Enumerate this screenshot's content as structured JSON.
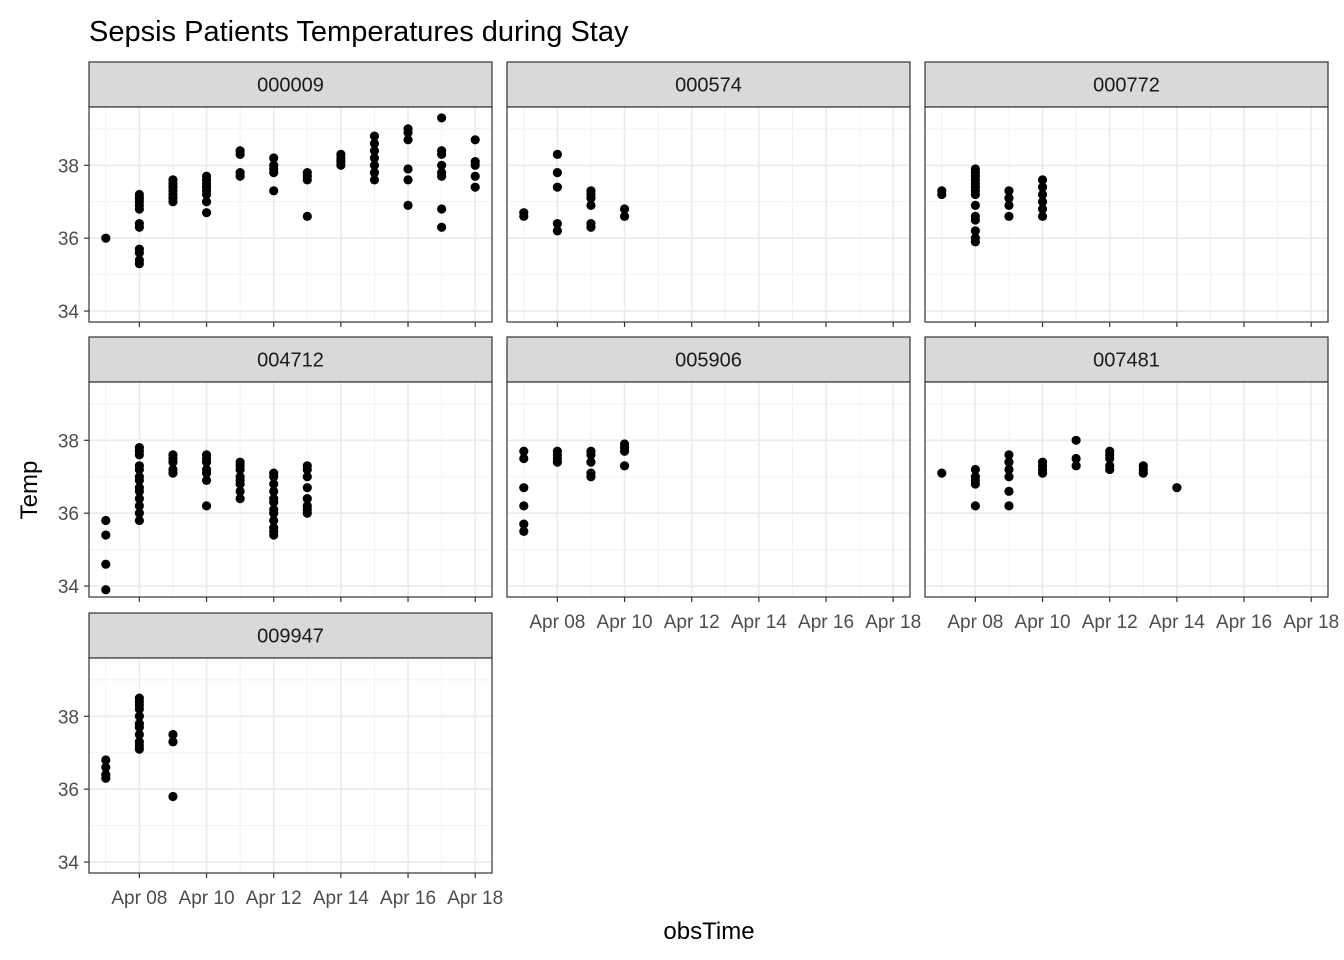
{
  "chart_data": {
    "type": "scatter",
    "title": "Sepsis Patients Temperatures during Stay",
    "xlabel": "obsTime",
    "ylabel": "Temp",
    "ylim": [
      33.7,
      39.6
    ],
    "xlim_day": [
      6.5,
      18.5
    ],
    "y_ticks": [
      34,
      36,
      38
    ],
    "x_ticks": [
      {
        "day": 8,
        "label": "Apr 08"
      },
      {
        "day": 10,
        "label": "Apr 10"
      },
      {
        "day": 12,
        "label": "Apr 12"
      },
      {
        "day": 14,
        "label": "Apr 14"
      },
      {
        "day": 16,
        "label": "Apr 16"
      },
      {
        "day": 18,
        "label": "Apr 18"
      }
    ],
    "grid": true,
    "point_color": "#000000",
    "strip_color": "#d9d9d9",
    "panels": [
      {
        "id": "000009",
        "points": [
          [
            7,
            36.0
          ],
          [
            8,
            35.3
          ],
          [
            8,
            35.4
          ],
          [
            8,
            35.6
          ],
          [
            8,
            35.7
          ],
          [
            8,
            36.3
          ],
          [
            8,
            36.4
          ],
          [
            8,
            36.8
          ],
          [
            8,
            36.9
          ],
          [
            8,
            37.0
          ],
          [
            8,
            37.1
          ],
          [
            8,
            37.2
          ],
          [
            9,
            37.0
          ],
          [
            9,
            37.1
          ],
          [
            9,
            37.2
          ],
          [
            9,
            37.3
          ],
          [
            9,
            37.4
          ],
          [
            9,
            37.5
          ],
          [
            9,
            37.6
          ],
          [
            10,
            36.7
          ],
          [
            10,
            37.0
          ],
          [
            10,
            37.2
          ],
          [
            10,
            37.3
          ],
          [
            10,
            37.4
          ],
          [
            10,
            37.5
          ],
          [
            10,
            37.6
          ],
          [
            10,
            37.7
          ],
          [
            11,
            37.7
          ],
          [
            11,
            37.8
          ],
          [
            11,
            38.3
          ],
          [
            11,
            38.4
          ],
          [
            12,
            37.3
          ],
          [
            12,
            37.8
          ],
          [
            12,
            37.9
          ],
          [
            12,
            38.0
          ],
          [
            12,
            38.2
          ],
          [
            13,
            36.6
          ],
          [
            13,
            37.6
          ],
          [
            13,
            37.7
          ],
          [
            13,
            37.8
          ],
          [
            14,
            38.0
          ],
          [
            14,
            38.1
          ],
          [
            14,
            38.2
          ],
          [
            14,
            38.3
          ],
          [
            15,
            37.6
          ],
          [
            15,
            37.8
          ],
          [
            15,
            38.0
          ],
          [
            15,
            38.2
          ],
          [
            15,
            38.4
          ],
          [
            15,
            38.6
          ],
          [
            15,
            38.8
          ],
          [
            16,
            36.9
          ],
          [
            16,
            37.6
          ],
          [
            16,
            37.9
          ],
          [
            16,
            38.7
          ],
          [
            16,
            38.9
          ],
          [
            16,
            39.0
          ],
          [
            17,
            36.3
          ],
          [
            17,
            36.8
          ],
          [
            17,
            37.7
          ],
          [
            17,
            37.8
          ],
          [
            17,
            38.0
          ],
          [
            17,
            38.3
          ],
          [
            17,
            38.4
          ],
          [
            17,
            39.3
          ],
          [
            18,
            37.4
          ],
          [
            18,
            37.7
          ],
          [
            18,
            38.0
          ],
          [
            18,
            38.1
          ],
          [
            18,
            38.7
          ]
        ]
      },
      {
        "id": "000574",
        "points": [
          [
            7,
            36.6
          ],
          [
            7,
            36.7
          ],
          [
            8,
            36.2
          ],
          [
            8,
            36.4
          ],
          [
            8,
            37.4
          ],
          [
            8,
            37.8
          ],
          [
            8,
            38.3
          ],
          [
            9,
            36.3
          ],
          [
            9,
            36.4
          ],
          [
            9,
            36.9
          ],
          [
            9,
            37.1
          ],
          [
            9,
            37.2
          ],
          [
            9,
            37.3
          ],
          [
            10,
            36.6
          ],
          [
            10,
            36.8
          ]
        ]
      },
      {
        "id": "000772",
        "points": [
          [
            7,
            37.2
          ],
          [
            7,
            37.3
          ],
          [
            8,
            35.9
          ],
          [
            8,
            36.0
          ],
          [
            8,
            36.2
          ],
          [
            8,
            36.5
          ],
          [
            8,
            36.6
          ],
          [
            8,
            36.9
          ],
          [
            8,
            37.2
          ],
          [
            8,
            37.3
          ],
          [
            8,
            37.4
          ],
          [
            8,
            37.5
          ],
          [
            8,
            37.6
          ],
          [
            8,
            37.7
          ],
          [
            8,
            37.8
          ],
          [
            8,
            37.9
          ],
          [
            9,
            36.6
          ],
          [
            9,
            36.9
          ],
          [
            9,
            37.1
          ],
          [
            9,
            37.3
          ],
          [
            10,
            36.6
          ],
          [
            10,
            36.8
          ],
          [
            10,
            37.0
          ],
          [
            10,
            37.2
          ],
          [
            10,
            37.4
          ],
          [
            10,
            37.6
          ]
        ]
      },
      {
        "id": "004712",
        "points": [
          [
            7,
            33.9
          ],
          [
            7,
            34.6
          ],
          [
            7,
            35.4
          ],
          [
            7,
            35.8
          ],
          [
            8,
            35.8
          ],
          [
            8,
            36.0
          ],
          [
            8,
            36.2
          ],
          [
            8,
            36.4
          ],
          [
            8,
            36.6
          ],
          [
            8,
            36.7
          ],
          [
            8,
            36.9
          ],
          [
            8,
            37.0
          ],
          [
            8,
            37.2
          ],
          [
            8,
            37.3
          ],
          [
            8,
            37.6
          ],
          [
            8,
            37.7
          ],
          [
            8,
            37.8
          ],
          [
            9,
            37.1
          ],
          [
            9,
            37.2
          ],
          [
            9,
            37.4
          ],
          [
            9,
            37.5
          ],
          [
            9,
            37.6
          ],
          [
            10,
            36.2
          ],
          [
            10,
            36.9
          ],
          [
            10,
            37.1
          ],
          [
            10,
            37.2
          ],
          [
            10,
            37.4
          ],
          [
            10,
            37.5
          ],
          [
            10,
            37.6
          ],
          [
            11,
            36.4
          ],
          [
            11,
            36.6
          ],
          [
            11,
            36.8
          ],
          [
            11,
            36.9
          ],
          [
            11,
            37.0
          ],
          [
            11,
            37.2
          ],
          [
            11,
            37.3
          ],
          [
            11,
            37.4
          ],
          [
            12,
            35.4
          ],
          [
            12,
            35.5
          ],
          [
            12,
            35.6
          ],
          [
            12,
            35.8
          ],
          [
            12,
            36.0
          ],
          [
            12,
            36.1
          ],
          [
            12,
            36.3
          ],
          [
            12,
            36.4
          ],
          [
            12,
            36.6
          ],
          [
            12,
            36.8
          ],
          [
            12,
            37.0
          ],
          [
            12,
            37.1
          ],
          [
            13,
            36.0
          ],
          [
            13,
            36.1
          ],
          [
            13,
            36.2
          ],
          [
            13,
            36.4
          ],
          [
            13,
            36.7
          ],
          [
            13,
            37.0
          ],
          [
            13,
            37.2
          ],
          [
            13,
            37.3
          ]
        ]
      },
      {
        "id": "005906",
        "points": [
          [
            7,
            35.5
          ],
          [
            7,
            35.7
          ],
          [
            7,
            36.2
          ],
          [
            7,
            36.7
          ],
          [
            7,
            37.5
          ],
          [
            7,
            37.7
          ],
          [
            8,
            37.4
          ],
          [
            8,
            37.5
          ],
          [
            8,
            37.6
          ],
          [
            8,
            37.7
          ],
          [
            9,
            37.0
          ],
          [
            9,
            37.1
          ],
          [
            9,
            37.4
          ],
          [
            9,
            37.6
          ],
          [
            9,
            37.7
          ],
          [
            10,
            37.3
          ],
          [
            10,
            37.7
          ],
          [
            10,
            37.8
          ],
          [
            10,
            37.9
          ]
        ]
      },
      {
        "id": "007481",
        "points": [
          [
            7,
            37.1
          ],
          [
            8,
            36.2
          ],
          [
            8,
            36.8
          ],
          [
            8,
            36.9
          ],
          [
            8,
            37.0
          ],
          [
            8,
            37.2
          ],
          [
            9,
            36.2
          ],
          [
            9,
            36.6
          ],
          [
            9,
            37.0
          ],
          [
            9,
            37.2
          ],
          [
            9,
            37.4
          ],
          [
            9,
            37.6
          ],
          [
            10,
            37.1
          ],
          [
            10,
            37.2
          ],
          [
            10,
            37.3
          ],
          [
            10,
            37.4
          ],
          [
            11,
            37.3
          ],
          [
            11,
            37.5
          ],
          [
            11,
            38.0
          ],
          [
            12,
            37.2
          ],
          [
            12,
            37.3
          ],
          [
            12,
            37.5
          ],
          [
            12,
            37.6
          ],
          [
            12,
            37.7
          ],
          [
            13,
            37.1
          ],
          [
            13,
            37.2
          ],
          [
            13,
            37.3
          ],
          [
            14,
            36.7
          ]
        ]
      },
      {
        "id": "009947",
        "points": [
          [
            7,
            36.3
          ],
          [
            7,
            36.4
          ],
          [
            7,
            36.6
          ],
          [
            7,
            36.8
          ],
          [
            8,
            37.1
          ],
          [
            8,
            37.2
          ],
          [
            8,
            37.3
          ],
          [
            8,
            37.5
          ],
          [
            8,
            37.7
          ],
          [
            8,
            37.8
          ],
          [
            8,
            38.0
          ],
          [
            8,
            38.2
          ],
          [
            8,
            38.3
          ],
          [
            8,
            38.4
          ],
          [
            8,
            38.5
          ],
          [
            9,
            35.8
          ],
          [
            9,
            37.3
          ],
          [
            9,
            37.5
          ]
        ]
      }
    ]
  }
}
